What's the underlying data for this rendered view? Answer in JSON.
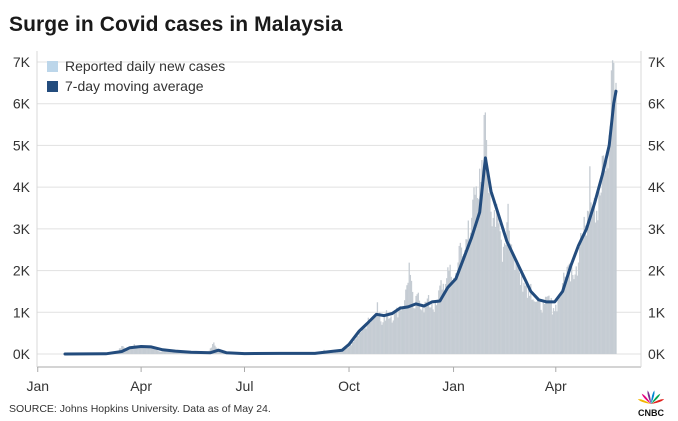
{
  "header": {
    "title": "Surge in Covid cases in Malaysia"
  },
  "footer": {
    "source": "SOURCE: Johns Hopkins University. Data as of May 24."
  },
  "logo": {
    "text": "CNBC",
    "colors": [
      "#f2b600",
      "#e5007d",
      "#7b2d8f",
      "#0089d0",
      "#00a651",
      "#e2211c"
    ]
  },
  "colors": {
    "bars": "#c5ccd3",
    "line": "#234c7d",
    "legend_bar": "#bcd6ea",
    "grid": "#e1e1e1",
    "axis": "#aaaaaa"
  },
  "chart_data": {
    "type": "bar",
    "title": "Surge in Covid cases in Malaysia",
    "xlabel": "",
    "ylabel": "",
    "x_range": [
      "2020-01-01",
      "2021-05-24"
    ],
    "ylim": [
      0,
      7000
    ],
    "grid": true,
    "legend_position": "top-left",
    "y_ticks": [
      {
        "value": 0,
        "label": "0K"
      },
      {
        "value": 1000,
        "label": "1K"
      },
      {
        "value": 2000,
        "label": "2K"
      },
      {
        "value": 3000,
        "label": "3K"
      },
      {
        "value": 4000,
        "label": "4K"
      },
      {
        "value": 5000,
        "label": "5K"
      },
      {
        "value": 6000,
        "label": "6K"
      },
      {
        "value": 7000,
        "label": "7K"
      }
    ],
    "x_ticks": [
      {
        "date": "2020-01-01",
        "label": "Jan"
      },
      {
        "date": "2020-04-01",
        "label": "Apr"
      },
      {
        "date": "2020-07-01",
        "label": "Jul"
      },
      {
        "date": "2020-10-01",
        "label": "Oct"
      },
      {
        "date": "2021-01-01",
        "label": "Jan"
      },
      {
        "date": "2021-04-01",
        "label": "Apr"
      }
    ],
    "series": [
      {
        "name": "Reported daily new cases",
        "type": "bar",
        "points": [
          [
            "2020-01-25",
            4
          ],
          [
            "2020-02-05",
            2
          ],
          [
            "2020-02-15",
            3
          ],
          [
            "2020-03-01",
            5
          ],
          [
            "2020-03-10",
            30
          ],
          [
            "2020-03-15",
            190
          ],
          [
            "2020-03-20",
            130
          ],
          [
            "2020-03-26",
            235
          ],
          [
            "2020-04-01",
            142
          ],
          [
            "2020-04-06",
            179
          ],
          [
            "2020-04-12",
            150
          ],
          [
            "2020-04-18",
            54
          ],
          [
            "2020-04-24",
            71
          ],
          [
            "2020-05-01",
            105
          ],
          [
            "2020-05-06",
            30
          ],
          [
            "2020-05-12",
            37
          ],
          [
            "2020-05-18",
            22
          ],
          [
            "2020-05-24",
            60
          ],
          [
            "2020-05-30",
            30
          ],
          [
            "2020-06-04",
            277
          ],
          [
            "2020-06-10",
            31
          ],
          [
            "2020-06-16",
            10
          ],
          [
            "2020-06-22",
            8
          ],
          [
            "2020-06-28",
            5
          ],
          [
            "2020-07-04",
            6
          ],
          [
            "2020-07-10",
            12
          ],
          [
            "2020-07-16",
            15
          ],
          [
            "2020-07-22",
            12
          ],
          [
            "2020-07-28",
            20
          ],
          [
            "2020-08-03",
            15
          ],
          [
            "2020-08-10",
            26
          ],
          [
            "2020-08-16",
            19
          ],
          [
            "2020-08-22",
            10
          ],
          [
            "2020-08-28",
            12
          ],
          [
            "2020-09-03",
            10
          ],
          [
            "2020-09-09",
            100
          ],
          [
            "2020-09-15",
            30
          ],
          [
            "2020-09-21",
            50
          ],
          [
            "2020-09-26",
            120
          ],
          [
            "2020-10-01",
            180
          ],
          [
            "2020-10-05",
            290
          ],
          [
            "2020-10-10",
            560
          ],
          [
            "2020-10-14",
            600
          ],
          [
            "2020-10-18",
            870
          ],
          [
            "2020-10-22",
            850
          ],
          [
            "2020-10-26",
            1240
          ],
          [
            "2020-10-30",
            700
          ],
          [
            "2020-11-03",
            1050
          ],
          [
            "2020-11-07",
            900
          ],
          [
            "2020-11-11",
            1020
          ],
          [
            "2020-11-15",
            1150
          ],
          [
            "2020-11-19",
            1290
          ],
          [
            "2020-11-23",
            2190
          ],
          [
            "2020-11-27",
            1100
          ],
          [
            "2020-12-01",
            1470
          ],
          [
            "2020-12-05",
            1130
          ],
          [
            "2020-12-09",
            1330
          ],
          [
            "2020-12-13",
            1200
          ],
          [
            "2020-12-17",
            1170
          ],
          [
            "2020-12-21",
            1770
          ],
          [
            "2020-12-25",
            1680
          ],
          [
            "2020-12-29",
            2140
          ],
          [
            "2021-01-02",
            1800
          ],
          [
            "2021-01-06",
            2590
          ],
          [
            "2021-01-10",
            2400
          ],
          [
            "2021-01-14",
            3200
          ],
          [
            "2021-01-18",
            3700
          ],
          [
            "2021-01-22",
            3740
          ],
          [
            "2021-01-26",
            4650
          ],
          [
            "2021-01-28",
            5730
          ],
          [
            "2021-01-30",
            5130
          ],
          [
            "2021-02-02",
            4060
          ],
          [
            "2021-02-06",
            3450
          ],
          [
            "2021-02-10",
            3130
          ],
          [
            "2021-02-14",
            2570
          ],
          [
            "2021-02-18",
            3600
          ],
          [
            "2021-02-22",
            2460
          ],
          [
            "2021-02-26",
            2200
          ],
          [
            "2021-03-02",
            1930
          ],
          [
            "2021-03-06",
            1680
          ],
          [
            "2021-03-10",
            1680
          ],
          [
            "2021-03-14",
            1250
          ],
          [
            "2021-03-18",
            1260
          ],
          [
            "2021-03-22",
            1200
          ],
          [
            "2021-03-26",
            1400
          ],
          [
            "2021-03-30",
            1100
          ],
          [
            "2021-04-03",
            1300
          ],
          [
            "2021-04-07",
            1700
          ],
          [
            "2021-04-11",
            2090
          ],
          [
            "2021-04-15",
            2190
          ],
          [
            "2021-04-19",
            2100
          ],
          [
            "2021-04-23",
            2900
          ],
          [
            "2021-04-27",
            3080
          ],
          [
            "2021-05-01",
            4500
          ],
          [
            "2021-05-05",
            3740
          ],
          [
            "2021-05-09",
            3900
          ],
          [
            "2021-05-13",
            4760
          ],
          [
            "2021-05-17",
            4450
          ],
          [
            "2021-05-20",
            6800
          ],
          [
            "2021-05-22",
            6980
          ],
          [
            "2021-05-24",
            6500
          ]
        ]
      },
      {
        "name": "7-day moving average",
        "type": "line",
        "points": [
          [
            "2020-01-25",
            0
          ],
          [
            "2020-03-01",
            5
          ],
          [
            "2020-03-15",
            60
          ],
          [
            "2020-03-22",
            150
          ],
          [
            "2020-04-01",
            180
          ],
          [
            "2020-04-10",
            170
          ],
          [
            "2020-04-20",
            100
          ],
          [
            "2020-05-01",
            70
          ],
          [
            "2020-05-15",
            40
          ],
          [
            "2020-06-01",
            30
          ],
          [
            "2020-06-08",
            90
          ],
          [
            "2020-06-15",
            30
          ],
          [
            "2020-07-01",
            10
          ],
          [
            "2020-08-01",
            15
          ],
          [
            "2020-09-01",
            15
          ],
          [
            "2020-09-15",
            60
          ],
          [
            "2020-09-25",
            90
          ],
          [
            "2020-10-01",
            230
          ],
          [
            "2020-10-10",
            550
          ],
          [
            "2020-10-17",
            730
          ],
          [
            "2020-10-25",
            950
          ],
          [
            "2020-11-01",
            920
          ],
          [
            "2020-11-08",
            970
          ],
          [
            "2020-11-15",
            1100
          ],
          [
            "2020-11-22",
            1130
          ],
          [
            "2020-11-29",
            1200
          ],
          [
            "2020-12-06",
            1150
          ],
          [
            "2020-12-13",
            1250
          ],
          [
            "2020-12-20",
            1270
          ],
          [
            "2020-12-27",
            1600
          ],
          [
            "2021-01-03",
            1800
          ],
          [
            "2021-01-10",
            2300
          ],
          [
            "2021-01-17",
            2800
          ],
          [
            "2021-01-24",
            3400
          ],
          [
            "2021-01-29",
            4700
          ],
          [
            "2021-02-03",
            3900
          ],
          [
            "2021-02-10",
            3300
          ],
          [
            "2021-02-17",
            2700
          ],
          [
            "2021-02-24",
            2300
          ],
          [
            "2021-03-03",
            1900
          ],
          [
            "2021-03-10",
            1500
          ],
          [
            "2021-03-17",
            1300
          ],
          [
            "2021-03-24",
            1250
          ],
          [
            "2021-03-31",
            1250
          ],
          [
            "2021-04-07",
            1500
          ],
          [
            "2021-04-14",
            2100
          ],
          [
            "2021-04-21",
            2600
          ],
          [
            "2021-04-28",
            3000
          ],
          [
            "2021-05-05",
            3600
          ],
          [
            "2021-05-12",
            4300
          ],
          [
            "2021-05-18",
            5000
          ],
          [
            "2021-05-22",
            6000
          ],
          [
            "2021-05-24",
            6300
          ]
        ]
      }
    ]
  }
}
